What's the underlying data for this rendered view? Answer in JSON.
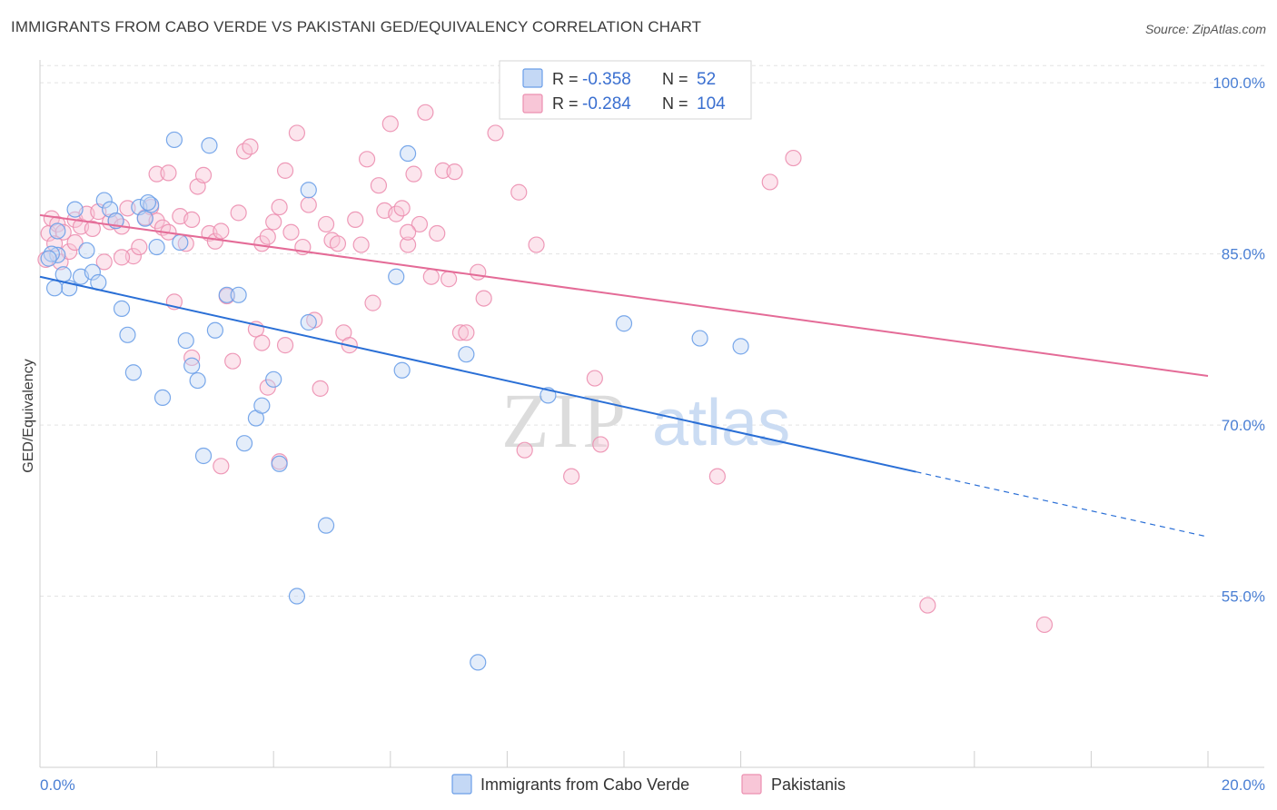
{
  "header": {
    "title": "IMMIGRANTS FROM CABO VERDE VS PAKISTANI GED/EQUIVALENCY CORRELATION CHART",
    "source": "Source: ZipAtlas.com"
  },
  "watermark": {
    "zip": "ZIP",
    "atlas": "atlas"
  },
  "colors": {
    "blue": "#6a9ee8",
    "blue_fill": "#c4d8f5",
    "blue_line": "#2a6fd6",
    "pink": "#ec8fb0",
    "pink_fill": "#f8c6d7",
    "pink_line": "#e46b97",
    "tick_text": "#4a7fd4",
    "grid": "#e3e3e3"
  },
  "chart_data": {
    "type": "scatter",
    "title": "IMMIGRANTS FROM CABO VERDE VS PAKISTANI GED/EQUIVALENCY CORRELATION CHART",
    "xlabel": "",
    "ylabel": "GED/Equivalency",
    "xlim": [
      0,
      20
    ],
    "ylim": [
      40,
      102
    ],
    "x_tick_labels": [
      "0.0%",
      "20.0%"
    ],
    "y_ticks": [
      55,
      70,
      85,
      100
    ],
    "y_tick_labels": [
      "55.0%",
      "70.0%",
      "85.0%",
      "100.0%"
    ],
    "grid": true,
    "legend": {
      "placement": "top-center",
      "entries": [
        {
          "r_label": "R =",
          "r": "-0.358",
          "n_label": "N =",
          "n": "52"
        },
        {
          "r_label": "R =",
          "r": "-0.284",
          "n_label": "N =",
          "n": "104"
        }
      ]
    },
    "series": [
      {
        "name": "Immigrants from Cabo Verde",
        "color": "blue",
        "trend": {
          "x": [
            0,
            15
          ],
          "y": [
            83.0,
            65.9
          ],
          "dashed_to": [
            20,
            60.2
          ]
        },
        "points": [
          [
            0.3,
            84.9
          ],
          [
            0.4,
            83.2
          ],
          [
            0.5,
            82.0
          ],
          [
            0.6,
            88.9
          ],
          [
            0.7,
            83.0
          ],
          [
            0.8,
            85.3
          ],
          [
            0.9,
            83.4
          ],
          [
            1.0,
            82.5
          ],
          [
            1.1,
            89.7
          ],
          [
            1.2,
            88.9
          ],
          [
            1.3,
            87.9
          ],
          [
            1.4,
            80.2
          ],
          [
            1.5,
            77.9
          ],
          [
            1.6,
            74.6
          ],
          [
            1.7,
            89.1
          ],
          [
            1.8,
            88.1
          ],
          [
            1.9,
            89.3
          ],
          [
            2.0,
            85.6
          ],
          [
            2.1,
            72.4
          ],
          [
            2.3,
            95.0
          ],
          [
            2.4,
            86.0
          ],
          [
            2.5,
            77.4
          ],
          [
            2.6,
            75.2
          ],
          [
            2.7,
            73.9
          ],
          [
            2.8,
            67.3
          ],
          [
            2.9,
            94.5
          ],
          [
            3.0,
            78.3
          ],
          [
            3.2,
            81.4
          ],
          [
            3.4,
            81.4
          ],
          [
            3.5,
            68.4
          ],
          [
            3.7,
            70.6
          ],
          [
            3.8,
            71.7
          ],
          [
            4.0,
            74.0
          ],
          [
            4.1,
            66.6
          ],
          [
            4.4,
            55.0
          ],
          [
            4.6,
            79.0
          ],
          [
            4.6,
            90.6
          ],
          [
            4.9,
            61.2
          ],
          [
            0.2,
            85.0
          ],
          [
            0.3,
            87.0
          ],
          [
            0.25,
            82.0
          ],
          [
            6.1,
            83.0
          ],
          [
            6.2,
            74.8
          ],
          [
            6.3,
            93.8
          ],
          [
            7.3,
            76.2
          ],
          [
            8.7,
            72.6
          ],
          [
            10.0,
            78.9
          ],
          [
            11.3,
            77.6
          ],
          [
            12.0,
            76.9
          ],
          [
            7.5,
            49.2
          ],
          [
            0.15,
            84.6
          ],
          [
            1.85,
            89.5
          ]
        ]
      },
      {
        "name": "Pakistanis",
        "color": "pink",
        "trend": {
          "x": [
            0,
            20
          ],
          "y": [
            88.4,
            74.3
          ]
        },
        "points": [
          [
            0.1,
            84.5
          ],
          [
            0.15,
            86.8
          ],
          [
            0.2,
            88.1
          ],
          [
            0.3,
            87.6
          ],
          [
            0.35,
            84.3
          ],
          [
            0.4,
            86.9
          ],
          [
            0.5,
            85.2
          ],
          [
            0.6,
            88.0
          ],
          [
            0.7,
            87.4
          ],
          [
            0.8,
            88.5
          ],
          [
            0.9,
            87.2
          ],
          [
            1.0,
            88.7
          ],
          [
            1.1,
            84.3
          ],
          [
            1.2,
            87.8
          ],
          [
            1.3,
            87.9
          ],
          [
            1.4,
            87.4
          ],
          [
            1.5,
            89.0
          ],
          [
            1.6,
            84.8
          ],
          [
            1.7,
            85.6
          ],
          [
            1.8,
            88.2
          ],
          [
            1.9,
            89.1
          ],
          [
            2.0,
            87.9
          ],
          [
            2.1,
            87.3
          ],
          [
            2.2,
            86.9
          ],
          [
            2.3,
            80.8
          ],
          [
            2.4,
            88.3
          ],
          [
            2.5,
            85.9
          ],
          [
            2.6,
            88.0
          ],
          [
            2.7,
            90.9
          ],
          [
            2.8,
            91.9
          ],
          [
            2.9,
            86.8
          ],
          [
            3.0,
            86.1
          ],
          [
            3.1,
            87.0
          ],
          [
            3.2,
            81.3
          ],
          [
            3.3,
            75.6
          ],
          [
            3.4,
            88.6
          ],
          [
            3.5,
            94.0
          ],
          [
            3.6,
            94.4
          ],
          [
            3.7,
            78.4
          ],
          [
            3.8,
            85.9
          ],
          [
            3.9,
            86.5
          ],
          [
            4.0,
            87.8
          ],
          [
            4.1,
            89.1
          ],
          [
            4.2,
            92.3
          ],
          [
            4.3,
            86.9
          ],
          [
            4.4,
            95.6
          ],
          [
            4.5,
            85.6
          ],
          [
            4.6,
            89.3
          ],
          [
            4.7,
            79.2
          ],
          [
            4.8,
            73.2
          ],
          [
            4.9,
            87.6
          ],
          [
            5.0,
            86.2
          ],
          [
            5.1,
            85.9
          ],
          [
            5.2,
            78.1
          ],
          [
            5.3,
            77.0
          ],
          [
            5.4,
            88.0
          ],
          [
            5.5,
            85.8
          ],
          [
            5.6,
            93.3
          ],
          [
            5.7,
            80.7
          ],
          [
            5.8,
            91.0
          ],
          [
            5.9,
            88.8
          ],
          [
            6.0,
            96.4
          ],
          [
            6.1,
            88.5
          ],
          [
            6.2,
            89.0
          ],
          [
            6.3,
            85.8
          ],
          [
            6.4,
            92.0
          ],
          [
            6.5,
            87.6
          ],
          [
            6.6,
            97.4
          ],
          [
            6.7,
            83.0
          ],
          [
            6.8,
            86.8
          ],
          [
            6.9,
            92.3
          ],
          [
            7.0,
            82.8
          ],
          [
            7.1,
            92.2
          ],
          [
            7.2,
            78.1
          ],
          [
            7.3,
            78.1
          ],
          [
            7.5,
            83.4
          ],
          [
            7.6,
            81.1
          ],
          [
            7.8,
            95.6
          ],
          [
            8.0,
            100.2
          ],
          [
            8.2,
            90.4
          ],
          [
            8.3,
            67.8
          ],
          [
            8.5,
            85.8
          ],
          [
            8.7,
            100.1
          ],
          [
            9.1,
            65.5
          ],
          [
            9.5,
            74.1
          ],
          [
            9.6,
            68.3
          ],
          [
            11.5,
            100.0
          ],
          [
            11.6,
            65.5
          ],
          [
            12.5,
            91.3
          ],
          [
            12.9,
            93.4
          ],
          [
            15.2,
            54.2
          ],
          [
            17.2,
            52.5
          ],
          [
            1.4,
            84.7
          ],
          [
            2.0,
            92.0
          ],
          [
            2.2,
            92.1
          ],
          [
            2.6,
            75.9
          ],
          [
            3.8,
            77.2
          ],
          [
            4.2,
            77.0
          ],
          [
            3.1,
            66.4
          ],
          [
            3.9,
            73.3
          ],
          [
            4.1,
            66.8
          ],
          [
            0.6,
            86.0
          ],
          [
            0.25,
            85.9
          ],
          [
            6.3,
            86.9
          ]
        ]
      }
    ]
  },
  "bottom_legend": {
    "items": [
      {
        "label": "Immigrants from Cabo Verde",
        "color": "blue"
      },
      {
        "label": "Pakistanis",
        "color": "pink"
      }
    ]
  }
}
